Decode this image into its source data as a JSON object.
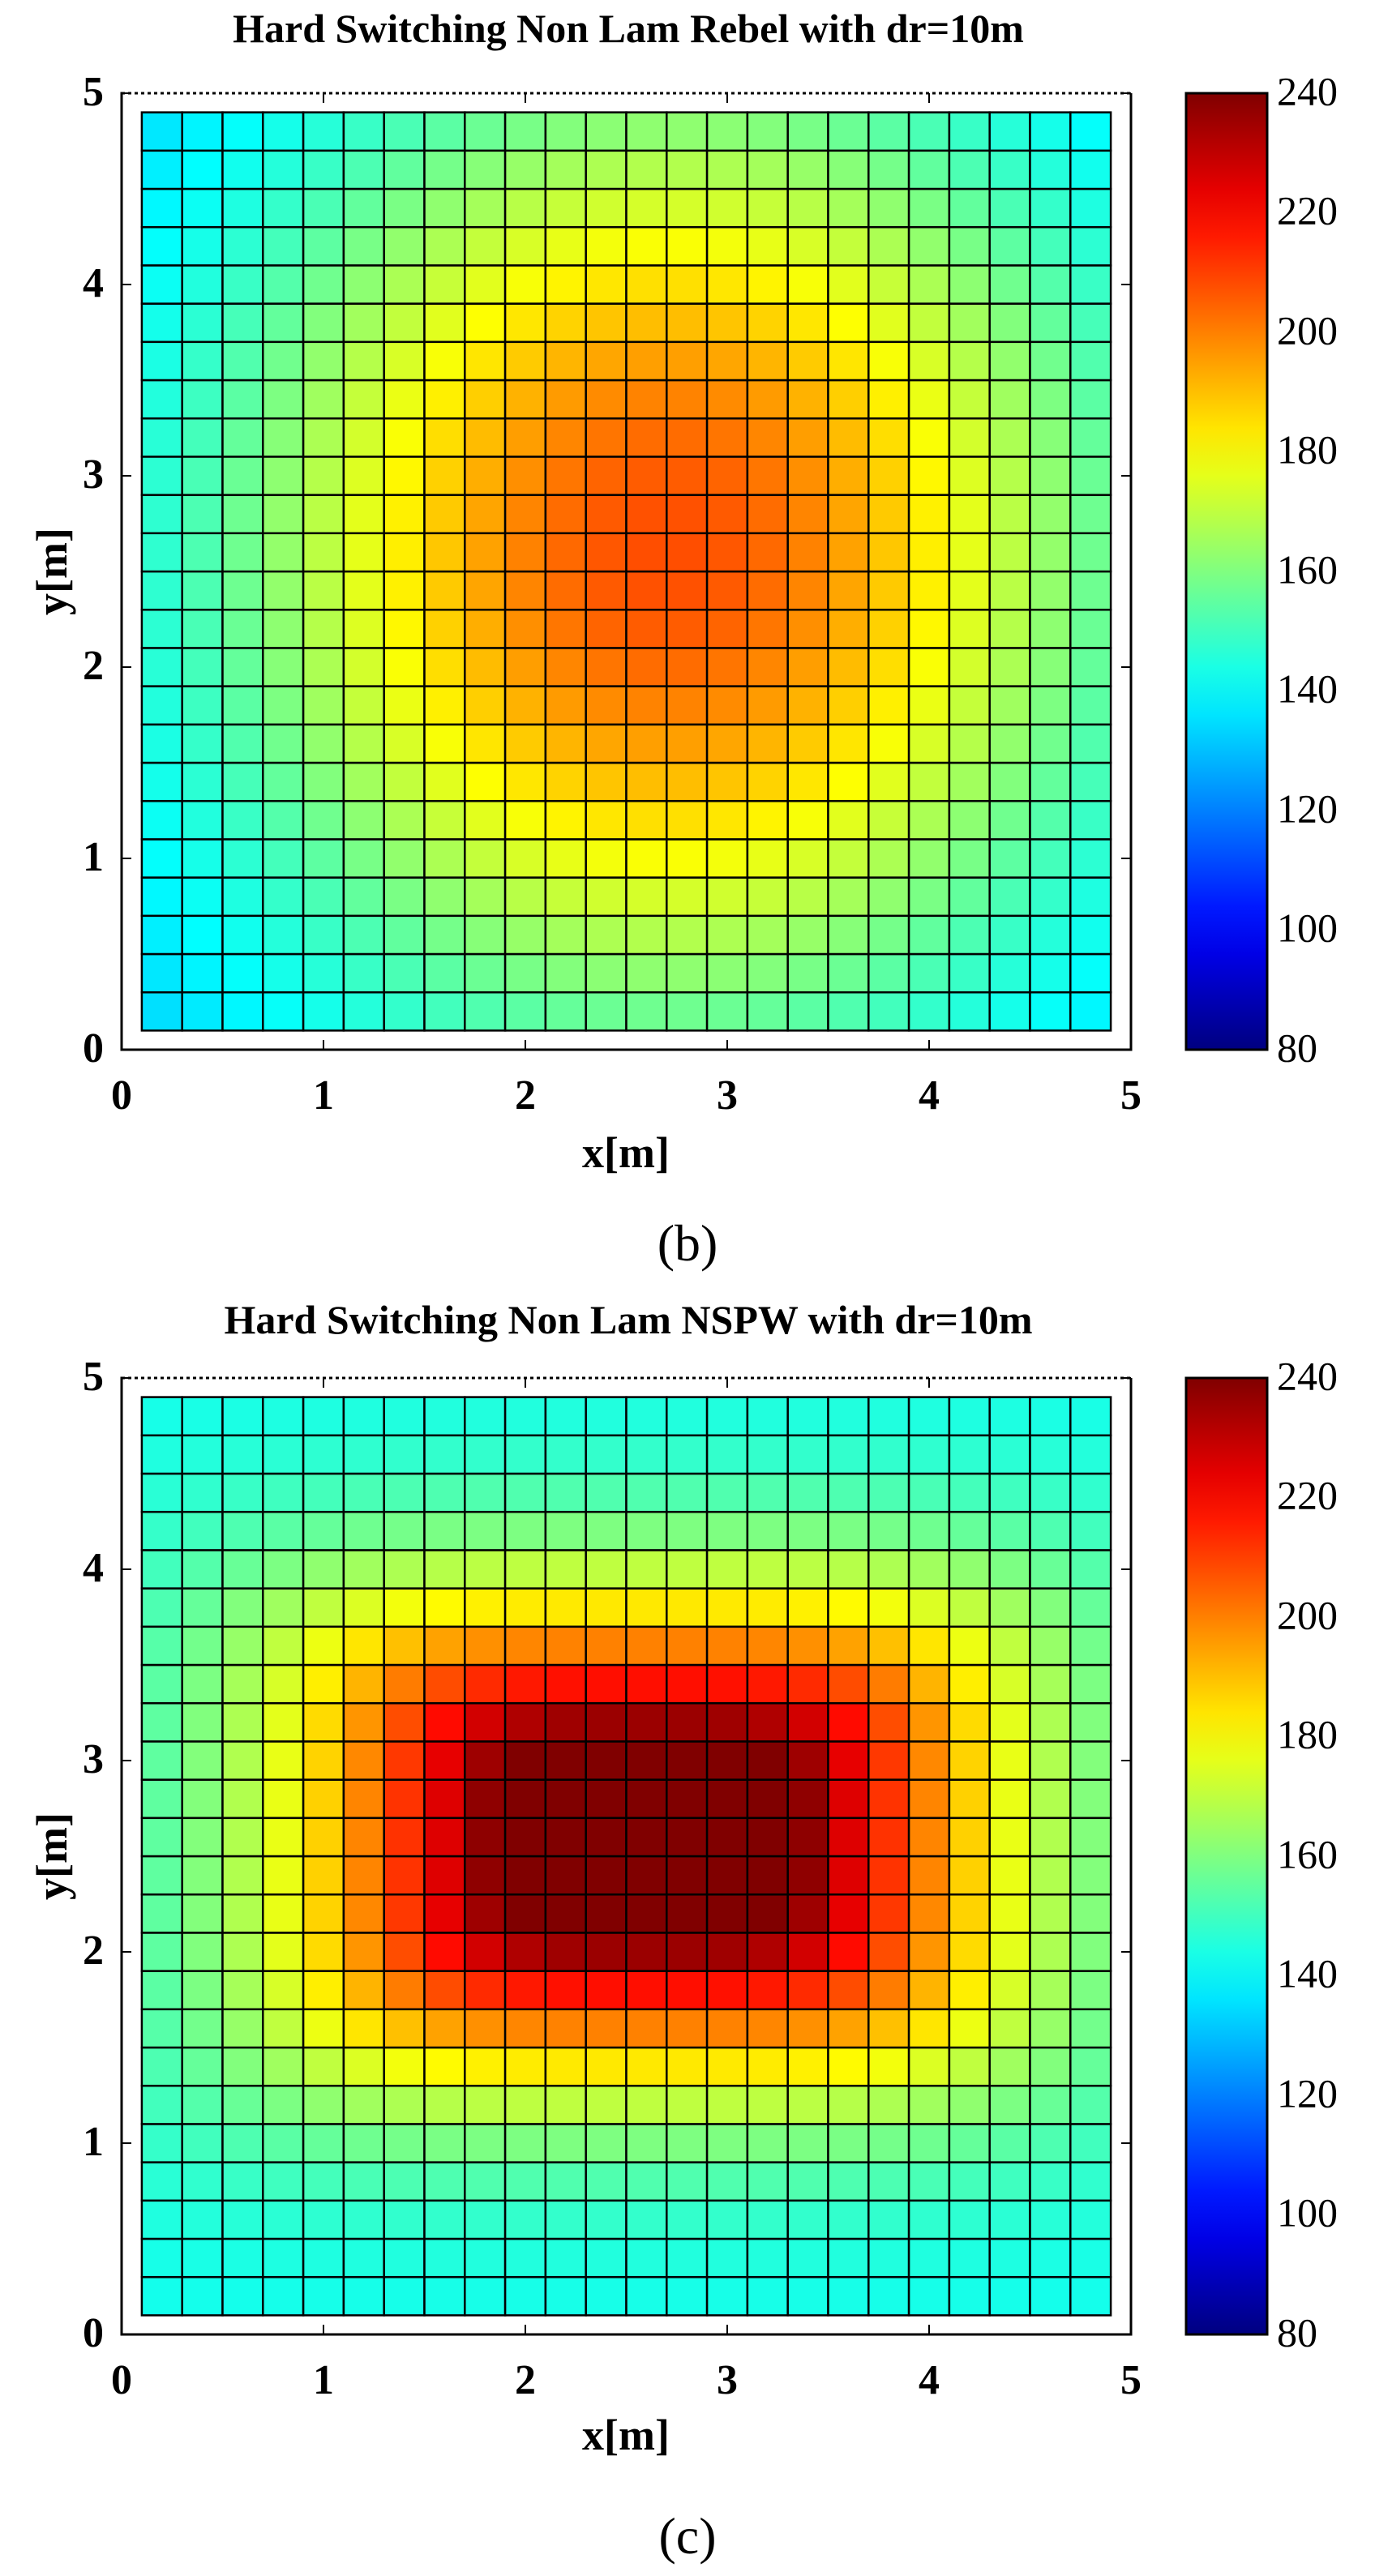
{
  "chart_data": [
    {
      "type": "heatmap",
      "title": "Hard Switching Non Lam Rebel with dr=10m",
      "xlabel": "x[m]",
      "ylabel": "y[m]",
      "caption": "(b)",
      "xlim": [
        0,
        5
      ],
      "ylim": [
        0,
        5
      ],
      "xticks": [
        "0",
        "1",
        "2",
        "3",
        "4",
        "5"
      ],
      "yticks": [
        "0",
        "1",
        "2",
        "3",
        "4",
        "5"
      ],
      "grid": {
        "nx": 24,
        "ny": 24,
        "cell_size_m": 0.2,
        "origin_m": [
          0.1,
          0.1
        ]
      },
      "field": {
        "model": "gaussian",
        "center_m": [
          2.7,
          2.6
        ],
        "sigma_m": [
          2.1,
          2.4
        ],
        "peak": 208,
        "base": 128,
        "floor": 128,
        "cap": 240
      },
      "colorbar": {
        "min": 80,
        "max": 240,
        "ticks": [
          "80",
          "100",
          "120",
          "140",
          "160",
          "180",
          "200",
          "220",
          "240"
        ],
        "colormap": "jet"
      }
    },
    {
      "type": "heatmap",
      "title": "Hard Switching Non Lam NSPW with dr=10m",
      "xlabel": "x[m]",
      "ylabel": "y[m]",
      "caption": "(c)",
      "xlim": [
        0,
        5
      ],
      "ylim": [
        0,
        5
      ],
      "xticks": [
        "0",
        "1",
        "2",
        "3",
        "4",
        "5"
      ],
      "yticks": [
        "0",
        "1",
        "2",
        "3",
        "4",
        "5"
      ],
      "grid": {
        "nx": 24,
        "ny": 24,
        "cell_size_m": 0.2,
        "origin_m": [
          0.1,
          0.1
        ]
      },
      "field": {
        "model": "superellipse",
        "center_m": [
          2.6,
          2.6
        ],
        "radius_m": [
          1.6,
          1.15
        ],
        "exponent": 4,
        "peak": 265,
        "base": 142,
        "floor": 130,
        "cap": 240
      },
      "colorbar": {
        "min": 80,
        "max": 240,
        "ticks": [
          "80",
          "100",
          "120",
          "140",
          "160",
          "180",
          "200",
          "220",
          "240"
        ],
        "colormap": "jet"
      }
    }
  ]
}
